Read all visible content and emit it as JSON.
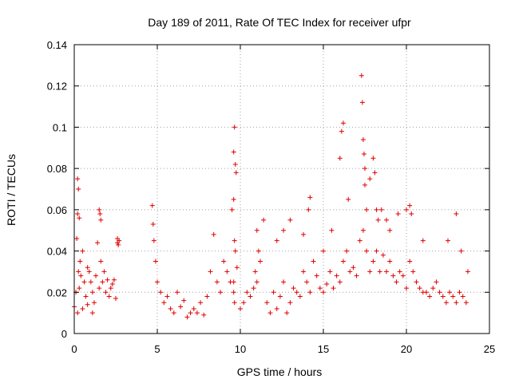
{
  "chart_data": {
    "type": "scatter",
    "title": "Day 189 of 2011, Rate Of TEC Index for receiver ufpr",
    "xlabel": "GPS time / hours",
    "ylabel": "ROTI / TECUs",
    "xlim": [
      0,
      25
    ],
    "ylim": [
      0,
      0.14
    ],
    "x_ticks": [
      "0",
      "5",
      "10",
      "15",
      "20",
      "25"
    ],
    "y_ticks": [
      "0",
      "0.02",
      "0.04",
      "0.06",
      "0.08",
      "0.1",
      "0.12",
      "0.14"
    ],
    "grid": true,
    "marker": "+",
    "color": "#e00000",
    "series": [
      {
        "x": [
          0.0,
          0.1,
          0.15,
          0.2,
          0.25,
          0.3,
          0.35,
          0.4,
          0.5,
          0.6,
          0.7,
          0.8,
          0.9,
          1.0,
          1.1,
          1.2,
          1.3,
          1.4,
          1.5,
          1.6,
          1.7,
          1.8,
          1.9,
          2.0,
          2.1,
          2.2,
          2.3,
          2.4,
          2.5,
          2.6,
          2.7,
          0.2,
          0.25,
          0.3,
          0.2,
          0.5,
          0.8,
          1.1,
          1.5,
          1.55,
          1.6,
          2.6,
          2.65,
          4.7,
          4.75,
          4.8,
          4.9,
          5.0,
          5.2,
          5.4,
          5.6,
          5.8,
          6.0,
          6.2,
          6.4,
          6.6,
          6.8,
          7.0,
          7.2,
          7.4,
          7.6,
          7.8,
          8.0,
          8.2,
          8.4,
          8.6,
          8.8,
          9.0,
          9.2,
          9.4,
          9.5,
          9.6,
          9.65,
          9.7,
          9.75,
          9.6,
          9.65,
          9.7,
          9.6,
          9.65,
          9.6,
          9.8,
          10.0,
          10.2,
          10.4,
          10.6,
          10.8,
          11.0,
          11.2,
          11.4,
          10.9,
          11.0,
          11.1,
          11.6,
          11.8,
          12.0,
          12.2,
          12.4,
          12.6,
          12.8,
          13.0,
          13.2,
          13.4,
          13.6,
          13.8,
          14.0,
          14.2,
          14.4,
          14.6,
          14.8,
          15.0,
          15.2,
          15.4,
          15.6,
          15.8,
          16.0,
          16.2,
          16.4,
          16.6,
          16.8,
          17.0,
          17.2,
          17.4,
          17.6,
          17.8,
          18.0,
          18.2,
          18.4,
          18.6,
          18.8,
          19.0,
          19.2,
          19.4,
          19.6,
          19.8,
          20.0,
          20.2,
          20.4,
          20.6,
          20.8,
          21.0,
          21.2,
          21.4,
          21.6,
          21.8,
          22.0,
          22.2,
          22.4,
          22.6,
          22.8,
          23.0,
          23.2,
          23.4,
          23.6,
          23.7,
          12.2,
          12.6,
          13.0,
          13.8,
          14.1,
          14.2,
          15.0,
          15.5,
          16.0,
          16.1,
          16.2,
          16.5,
          17.3,
          17.35,
          17.4,
          17.45,
          17.5,
          17.5,
          17.6,
          17.8,
          18.0,
          18.1,
          18.2,
          18.3,
          18.5,
          18.8,
          19.0,
          19.5,
          20.0,
          20.2,
          20.3,
          21.0,
          22.5,
          23.0,
          23.3
        ],
        "y": [
          0.013,
          0.02,
          0.046,
          0.058,
          0.03,
          0.022,
          0.035,
          0.028,
          0.04,
          0.025,
          0.018,
          0.032,
          0.03,
          0.025,
          0.02,
          0.015,
          0.028,
          0.044,
          0.022,
          0.035,
          0.025,
          0.03,
          0.02,
          0.026,
          0.018,
          0.022,
          0.024,
          0.026,
          0.017,
          0.044,
          0.045,
          0.075,
          0.07,
          0.056,
          0.01,
          0.012,
          0.014,
          0.01,
          0.06,
          0.058,
          0.055,
          0.046,
          0.043,
          0.062,
          0.053,
          0.045,
          0.035,
          0.025,
          0.02,
          0.015,
          0.018,
          0.012,
          0.01,
          0.02,
          0.013,
          0.016,
          0.008,
          0.01,
          0.012,
          0.01,
          0.015,
          0.009,
          0.018,
          0.03,
          0.048,
          0.025,
          0.02,
          0.035,
          0.03,
          0.025,
          0.06,
          0.088,
          0.1,
          0.082,
          0.078,
          0.065,
          0.045,
          0.04,
          0.02,
          0.015,
          0.025,
          0.032,
          0.012,
          0.015,
          0.02,
          0.018,
          0.022,
          0.05,
          0.035,
          0.055,
          0.03,
          0.025,
          0.04,
          0.015,
          0.01,
          0.02,
          0.012,
          0.018,
          0.025,
          0.01,
          0.015,
          0.022,
          0.02,
          0.018,
          0.03,
          0.025,
          0.02,
          0.035,
          0.028,
          0.022,
          0.02,
          0.024,
          0.03,
          0.022,
          0.028,
          0.025,
          0.035,
          0.04,
          0.03,
          0.032,
          0.028,
          0.045,
          0.05,
          0.04,
          0.03,
          0.035,
          0.04,
          0.03,
          0.038,
          0.03,
          0.035,
          0.028,
          0.025,
          0.03,
          0.028,
          0.022,
          0.035,
          0.03,
          0.025,
          0.022,
          0.02,
          0.02,
          0.018,
          0.022,
          0.025,
          0.02,
          0.018,
          0.015,
          0.02,
          0.018,
          0.015,
          0.02,
          0.018,
          0.015,
          0.03,
          0.045,
          0.05,
          0.055,
          0.048,
          0.06,
          0.066,
          0.04,
          0.05,
          0.085,
          0.098,
          0.102,
          0.065,
          0.125,
          0.112,
          0.094,
          0.087,
          0.08,
          0.072,
          0.06,
          0.075,
          0.085,
          0.078,
          0.06,
          0.055,
          0.06,
          0.055,
          0.05,
          0.058,
          0.06,
          0.062,
          0.058,
          0.045,
          0.045,
          0.058,
          0.04
        ]
      }
    ]
  }
}
